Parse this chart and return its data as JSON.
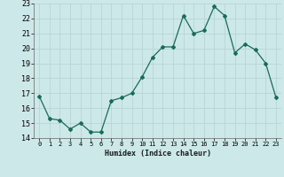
{
  "x": [
    0,
    1,
    2,
    3,
    4,
    5,
    6,
    7,
    8,
    9,
    10,
    11,
    12,
    13,
    14,
    15,
    16,
    17,
    18,
    19,
    20,
    21,
    22,
    23
  ],
  "y": [
    16.8,
    15.3,
    15.2,
    14.6,
    15.0,
    14.4,
    14.4,
    16.5,
    16.7,
    17.0,
    18.1,
    19.4,
    20.1,
    20.1,
    22.2,
    21.0,
    21.2,
    22.8,
    22.2,
    19.7,
    20.3,
    19.9,
    19.0,
    16.7
  ],
  "xlim": [
    -0.5,
    23.5
  ],
  "ylim": [
    14,
    23
  ],
  "yticks": [
    14,
    15,
    16,
    17,
    18,
    19,
    20,
    21,
    22,
    23
  ],
  "xticks": [
    0,
    1,
    2,
    3,
    4,
    5,
    6,
    7,
    8,
    9,
    10,
    11,
    12,
    13,
    14,
    15,
    16,
    17,
    18,
    19,
    20,
    21,
    22,
    23
  ],
  "xlabel": "Humidex (Indice chaleur)",
  "line_color": "#1a6b5a",
  "marker": "D",
  "marker_size": 2.0,
  "bg_color": "#cce8e8",
  "grid_color": "#b8d4d4",
  "fig_bg": "#cce8e8"
}
